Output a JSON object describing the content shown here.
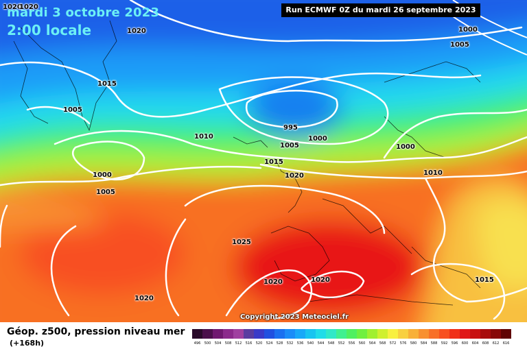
{
  "header": {
    "date": "mardi 3 octobre 2023",
    "time": "2:00 locale",
    "run": "Run ECMWF 0Z du mardi 26 septembre 2023"
  },
  "footer": {
    "copyright": "Copyright 2023 Meteociel.fr",
    "title": "Géop. z500, pression niveau mer",
    "lead": "(+168h)"
  },
  "isobar_labels": [
    "1020",
    "1020",
    "1020",
    "1015",
    "1005",
    "995",
    "1000",
    "1010",
    "1005",
    "1015",
    "1020",
    "1000",
    "1005",
    "1000",
    "1010",
    "1000",
    "1005",
    "1025",
    "1020",
    "1020",
    "1020",
    "1015"
  ],
  "legend": {
    "ticks": [
      "496",
      "500",
      "504",
      "508",
      "512",
      "516",
      "520",
      "524",
      "528",
      "532",
      "536",
      "540",
      "544",
      "548",
      "552",
      "556",
      "560",
      "564",
      "568",
      "572",
      "576",
      "580",
      "584",
      "588",
      "592",
      "596",
      "600",
      "604",
      "608",
      "612",
      "616"
    ],
    "colors": [
      "#2a0a2a",
      "#4b0f4b",
      "#701870",
      "#8c2a8c",
      "#a040a0",
      "#5a3ca0",
      "#3a3ac8",
      "#2050e0",
      "#1a70f0",
      "#1a8cf8",
      "#18a8f8",
      "#18c4f0",
      "#20dce8",
      "#30e8c8",
      "#40f090",
      "#50f060",
      "#70f040",
      "#a0f030",
      "#d0f030",
      "#f8f040",
      "#f8d040",
      "#f8b038",
      "#f89030",
      "#f87028",
      "#f85020",
      "#f03018",
      "#e01818",
      "#c81010",
      "#a80c0c",
      "#880808",
      "#600404"
    ]
  }
}
